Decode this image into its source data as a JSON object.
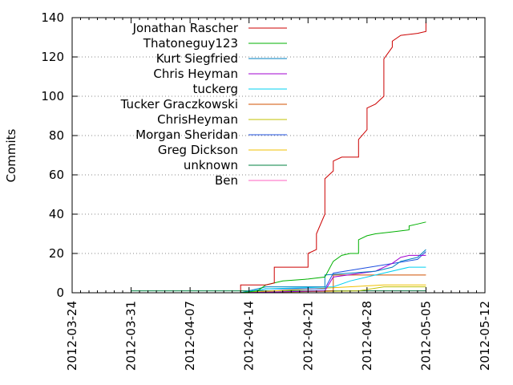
{
  "chart_data": {
    "type": "line",
    "ylabel": "Commits",
    "xlim": [
      "2012-03-24",
      "2012-05-12"
    ],
    "ylim": [
      0,
      140
    ],
    "x_ticks": [
      "2012-03-24",
      "2012-03-31",
      "2012-04-07",
      "2012-04-14",
      "2012-04-21",
      "2012-04-28",
      "2012-05-05",
      "2012-05-12"
    ],
    "y_ticks": [
      0,
      20,
      40,
      60,
      80,
      100,
      120,
      140
    ],
    "grid": true,
    "legend_position": "top-left",
    "series": [
      {
        "name": "Jonathan Rascher",
        "color": "#cc0000",
        "points": [
          [
            "2012-04-13",
            0
          ],
          [
            "2012-04-13",
            4
          ],
          [
            "2012-04-16",
            4
          ],
          [
            "2012-04-17",
            5
          ],
          [
            "2012-04-17",
            13
          ],
          [
            "2012-04-21",
            13
          ],
          [
            "2012-04-21",
            17
          ],
          [
            "2012-04-21",
            20
          ],
          [
            "2012-04-22",
            22
          ],
          [
            "2012-04-22",
            30
          ],
          [
            "2012-04-23",
            40
          ],
          [
            "2012-04-23",
            52
          ],
          [
            "2012-04-23",
            58
          ],
          [
            "2012-04-24",
            62
          ],
          [
            "2012-04-24",
            67
          ],
          [
            "2012-04-25",
            69
          ],
          [
            "2012-04-27",
            69
          ],
          [
            "2012-04-27",
            78
          ],
          [
            "2012-04-28",
            83
          ],
          [
            "2012-04-28",
            94
          ],
          [
            "2012-04-29",
            96
          ],
          [
            "2012-04-30",
            100
          ],
          [
            "2012-04-30",
            119
          ],
          [
            "2012-05-01",
            125
          ],
          [
            "2012-05-01",
            128
          ],
          [
            "2012-05-02",
            131
          ],
          [
            "2012-05-04",
            132
          ],
          [
            "2012-05-05",
            133
          ],
          [
            "2012-05-05",
            138
          ]
        ]
      },
      {
        "name": "Thatoneguy123",
        "color": "#00b000",
        "points": [
          [
            "2012-04-13",
            0
          ],
          [
            "2012-04-15",
            1
          ],
          [
            "2012-04-16",
            4
          ],
          [
            "2012-04-18",
            6
          ],
          [
            "2012-04-21",
            7
          ],
          [
            "2012-04-23",
            8
          ],
          [
            "2012-04-24",
            16
          ],
          [
            "2012-04-25",
            19
          ],
          [
            "2012-04-26",
            20
          ],
          [
            "2012-04-27",
            20
          ],
          [
            "2012-04-27",
            27
          ],
          [
            "2012-04-28",
            29
          ],
          [
            "2012-04-29",
            30
          ],
          [
            "2012-05-01",
            31
          ],
          [
            "2012-05-03",
            32
          ],
          [
            "2012-05-03",
            34
          ],
          [
            "2012-05-04",
            35
          ],
          [
            "2012-05-05",
            36
          ]
        ]
      },
      {
        "name": "Kurt Siegfried",
        "color": "#0080c0",
        "points": [
          [
            "2012-04-13",
            0
          ],
          [
            "2012-04-16",
            3
          ],
          [
            "2012-04-23",
            3
          ],
          [
            "2012-04-23",
            9
          ],
          [
            "2012-04-29",
            11
          ],
          [
            "2012-05-01",
            13
          ],
          [
            "2012-05-02",
            16
          ],
          [
            "2012-05-04",
            18
          ],
          [
            "2012-05-05",
            22
          ]
        ]
      },
      {
        "name": "Chris Heyman",
        "color": "#a000d0",
        "points": [
          [
            "2012-04-13",
            0
          ],
          [
            "2012-04-23",
            1
          ],
          [
            "2012-04-24",
            8
          ],
          [
            "2012-04-29",
            11
          ],
          [
            "2012-05-01",
            15
          ],
          [
            "2012-05-02",
            18
          ],
          [
            "2012-05-03",
            19
          ],
          [
            "2012-05-05",
            19
          ]
        ]
      },
      {
        "name": "tuckerg",
        "color": "#00d0f0",
        "points": [
          [
            "2012-04-13",
            0
          ],
          [
            "2012-04-16",
            2
          ],
          [
            "2012-04-24",
            3
          ],
          [
            "2012-04-26",
            6
          ],
          [
            "2012-04-29",
            9
          ],
          [
            "2012-05-03",
            13
          ],
          [
            "2012-05-05",
            13
          ]
        ]
      },
      {
        "name": "Tucker Graczkowski",
        "color": "#d05000",
        "points": [
          [
            "2012-04-13",
            0
          ],
          [
            "2012-04-24",
            1
          ],
          [
            "2012-04-24",
            9
          ],
          [
            "2012-05-05",
            9
          ]
        ]
      },
      {
        "name": "ChrisHeyman",
        "color": "#c0c000",
        "points": [
          [
            "2012-04-13",
            0
          ],
          [
            "2012-04-27",
            1
          ],
          [
            "2012-04-30",
            3
          ],
          [
            "2012-05-05",
            3
          ]
        ]
      },
      {
        "name": "Morgan Sheridan",
        "color": "#2050e0",
        "points": [
          [
            "2012-04-13",
            0
          ],
          [
            "2012-04-16",
            2
          ],
          [
            "2012-04-23",
            2
          ],
          [
            "2012-04-24",
            10
          ],
          [
            "2012-05-04",
            17
          ],
          [
            "2012-05-05",
            21
          ]
        ]
      },
      {
        "name": "Greg Dickson",
        "color": "#f0c000",
        "points": [
          [
            "2012-04-13",
            0
          ],
          [
            "2012-04-30",
            4
          ],
          [
            "2012-05-05",
            4
          ]
        ]
      },
      {
        "name": "unknown",
        "color": "#008040",
        "points": [
          [
            "2012-03-31",
            0
          ],
          [
            "2012-03-31",
            1
          ],
          [
            "2012-04-06",
            1
          ],
          [
            "2012-04-13",
            1
          ],
          [
            "2012-04-14",
            1
          ],
          [
            "2012-05-05",
            1
          ]
        ]
      },
      {
        "name": "Ben",
        "color": "#ff60c0",
        "points": [
          [
            "2012-04-13",
            0
          ],
          [
            "2012-04-25",
            1
          ],
          [
            "2012-05-05",
            1
          ]
        ]
      }
    ]
  }
}
